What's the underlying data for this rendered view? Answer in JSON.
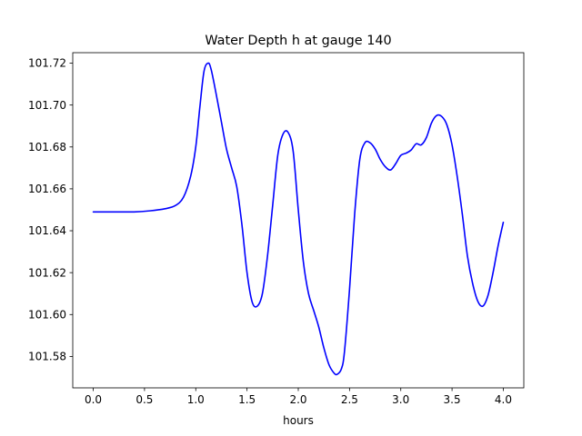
{
  "chart_data": {
    "type": "line",
    "title": "Water Depth h at gauge 140",
    "xlabel": "hours",
    "ylabel": "",
    "xlim": [
      -0.2,
      4.2
    ],
    "ylim": [
      101.565,
      101.725
    ],
    "x_ticks": [
      0.0,
      0.5,
      1.0,
      1.5,
      2.0,
      2.5,
      3.0,
      3.5,
      4.0
    ],
    "x_tick_labels": [
      "0.0",
      "0.5",
      "1.0",
      "1.5",
      "2.0",
      "2.5",
      "3.0",
      "3.5",
      "4.0"
    ],
    "y_ticks": [
      101.58,
      101.6,
      101.62,
      101.64,
      101.66,
      101.68,
      101.7,
      101.72
    ],
    "y_tick_labels": [
      "101.58",
      "101.60",
      "101.62",
      "101.64",
      "101.66",
      "101.68",
      "101.70",
      "101.72"
    ],
    "grid": false,
    "line_color": "#0000ff",
    "series": [
      {
        "x": [
          0.0,
          0.2,
          0.4,
          0.55,
          0.7,
          0.8,
          0.88,
          0.95,
          1.0,
          1.04,
          1.08,
          1.12,
          1.15,
          1.2,
          1.25,
          1.3,
          1.35,
          1.4,
          1.45,
          1.5,
          1.55,
          1.6,
          1.65,
          1.7,
          1.75,
          1.8,
          1.85,
          1.9,
          1.95,
          2.0,
          2.05,
          2.1,
          2.15,
          2.2,
          2.25,
          2.3,
          2.35,
          2.38,
          2.42,
          2.45,
          2.5,
          2.55,
          2.6,
          2.65,
          2.7,
          2.75,
          2.8,
          2.85,
          2.9,
          2.95,
          3.0,
          3.05,
          3.1,
          3.15,
          3.2,
          3.25,
          3.3,
          3.35,
          3.4,
          3.45,
          3.5,
          3.55,
          3.6,
          3.65,
          3.7,
          3.75,
          3.8,
          3.85,
          3.9,
          3.95,
          4.0
        ],
        "y": [
          101.649,
          101.649,
          101.649,
          101.6495,
          101.6505,
          101.652,
          101.656,
          101.666,
          101.68,
          101.699,
          101.716,
          101.72,
          101.717,
          101.705,
          101.692,
          101.679,
          101.67,
          101.661,
          101.643,
          101.62,
          101.606,
          101.604,
          101.61,
          101.628,
          101.652,
          101.676,
          101.686,
          101.687,
          101.678,
          101.65,
          101.625,
          101.61,
          101.602,
          101.594,
          101.584,
          101.576,
          101.572,
          101.5715,
          101.574,
          101.582,
          101.612,
          101.648,
          101.674,
          101.682,
          101.682,
          101.679,
          101.674,
          101.6705,
          101.669,
          101.672,
          101.676,
          101.677,
          101.6785,
          101.6815,
          101.681,
          101.6845,
          101.6915,
          101.695,
          101.6945,
          101.6905,
          101.681,
          101.666,
          101.648,
          101.628,
          101.615,
          101.6065,
          101.604,
          101.609,
          101.62,
          101.633,
          101.644
        ]
      }
    ]
  }
}
